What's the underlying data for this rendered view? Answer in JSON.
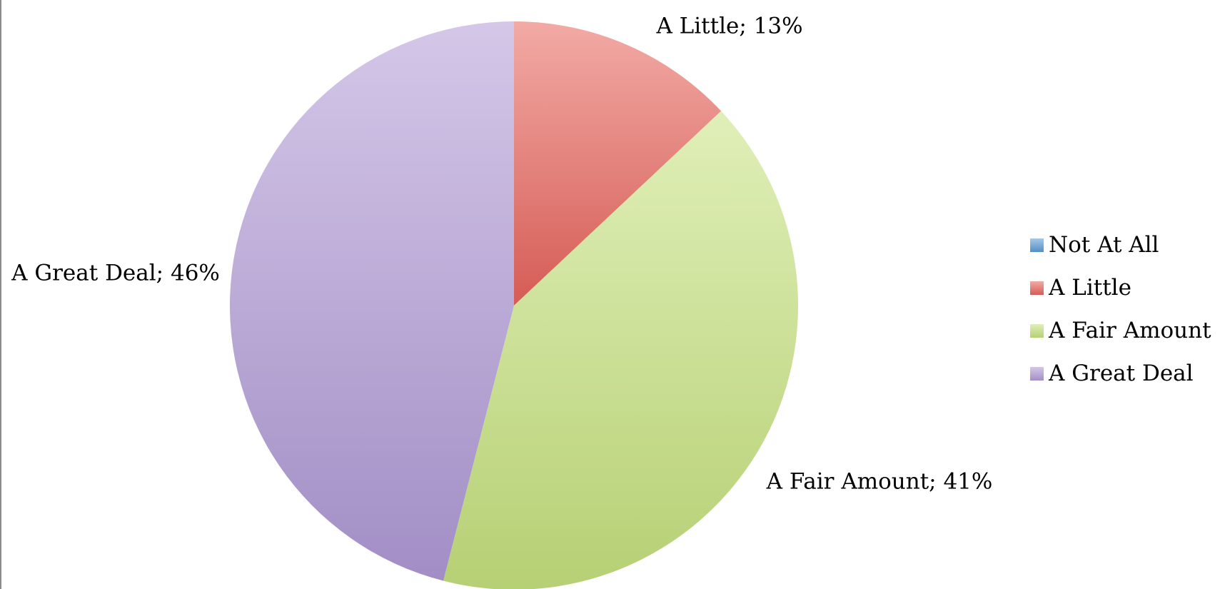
{
  "chart_data": {
    "type": "pie",
    "title": "",
    "slices": [
      {
        "name": "Not At All",
        "value": 0,
        "color": "#5b9bd5",
        "data_label": ""
      },
      {
        "name": "A Little",
        "value": 13,
        "color": "#e8645c",
        "data_label": "A Little; 13%"
      },
      {
        "name": "A Fair Amount",
        "value": 41,
        "color": "#c6e27e",
        "data_label": "A Fair Amount; 41%"
      },
      {
        "name": "A Great Deal",
        "value": 46,
        "color": "#b09ad6",
        "data_label": "A Great Deal; 46%"
      }
    ],
    "legend_position": "right"
  }
}
